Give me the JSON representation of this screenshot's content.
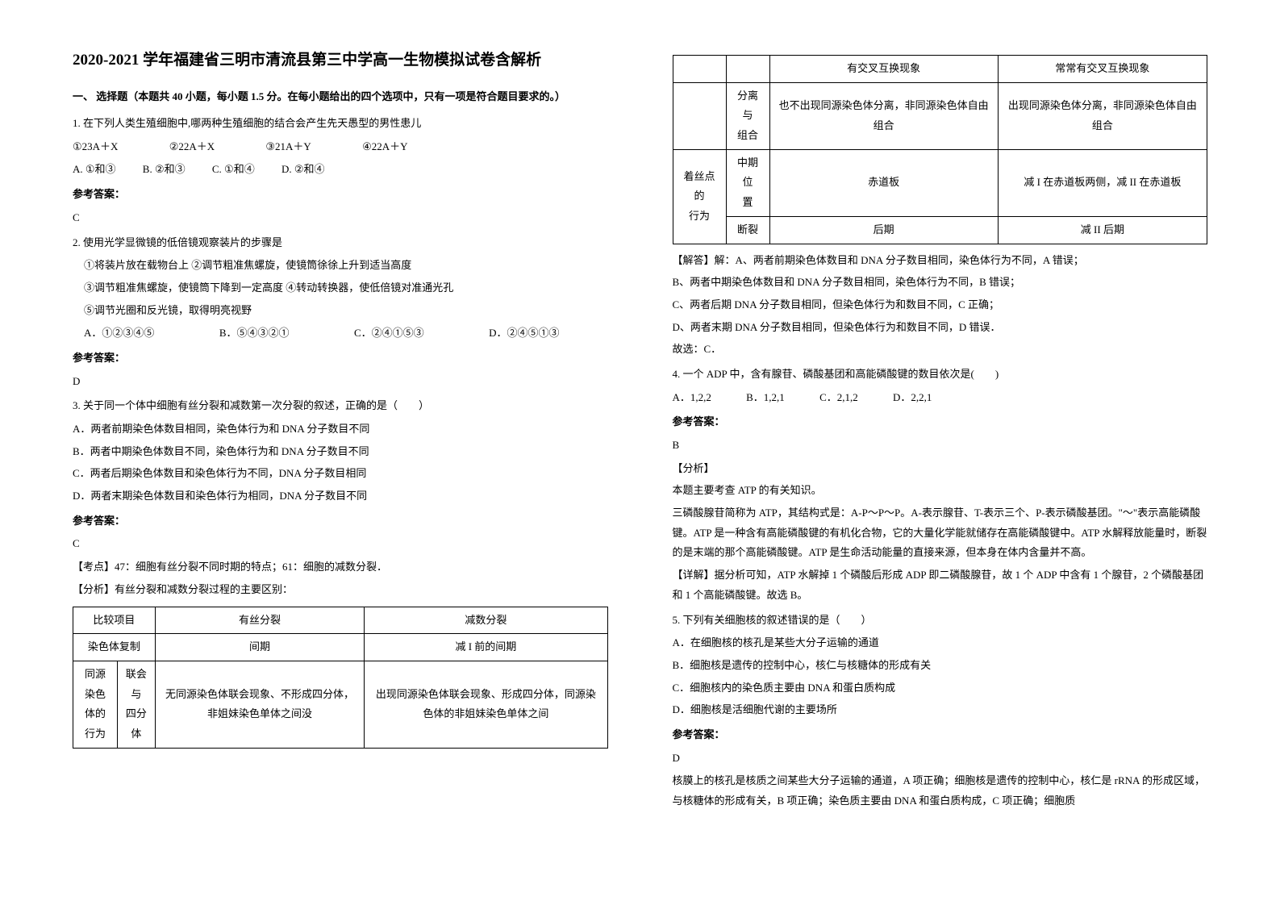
{
  "title": "2020-2021 学年福建省三明市清流县第三中学高一生物模拟试卷含解析",
  "section1": "一、 选择题（本题共 40 小题，每小题 1.5 分。在每小题给出的四个选项中，只有一项是符合题目要求的。）",
  "q1": {
    "stem": "1. 在下列人类生殖细胞中,哪两种生殖细胞的结合会产生先天愚型的男性患儿",
    "nums": [
      "①23A＋X",
      "②22A＋X",
      "③21A＋Y",
      "④22A＋Y"
    ],
    "opts": [
      "A. ①和③",
      "B. ②和③",
      "C. ①和④",
      "D. ②和④"
    ],
    "ansLabel": "参考答案：",
    "ans": "C"
  },
  "q2": {
    "stem": "2. 使用光学显微镜的低倍镜观察装片的步骤是",
    "s1": "①将装片放在载物台上          ②调节粗准焦螺旋，使镜筒徐徐上升到适当高度",
    "s2": "③调节粗准焦螺旋，使镜筒下降到一定高度   ④转动转换器，使低倍镜对准通光孔",
    "s3": "⑤调节光圈和反光镜，取得明亮视野",
    "opts": [
      "A．①②③④⑤",
      "B．⑤④③②①",
      "C．②④①⑤③",
      "D．②④⑤①③"
    ],
    "ansLabel": "参考答案：",
    "ans": "D"
  },
  "q3": {
    "stem": "3. 关于同一个体中细胞有丝分裂和减数第一次分裂的叙述，正确的是（　　）",
    "oA": "A．两者前期染色体数目相同，染色体行为和 DNA 分子数目不同",
    "oB": "B．两者中期染色体数目不同，染色体行为和 DNA 分子数目不同",
    "oC": "C．两者后期染色体数目和染色体行为不同，DNA 分子数目相同",
    "oD": "D．两者末期染色体数目和染色体行为相同，DNA 分子数目不同",
    "ansLabel": "参考答案：",
    "ans": "C",
    "kd": "【考点】47：细胞有丝分裂不同时期的特点；61：细胞的减数分裂．",
    "fx": "【分析】有丝分裂和减数分裂过程的主要区别："
  },
  "table_left": {
    "h1": "比较项目",
    "h2": "有丝分裂",
    "h3": "减数分裂",
    "r1c1": "染色体复制",
    "r1c2": "间期",
    "r1c3": "减 I 前的间期",
    "r2c1a": "同源染色",
    "r2c1b": "联会与",
    "r2c2": "无同源染色体联会现象、不形成四分体，非姐妹染色单体之间没",
    "r2c3": "出现同源染色体联会现象、形成四分体，同源染色体的非姐妹染色单体之间",
    "r3c1a": "体的行为",
    "r3c1b": "四分体"
  },
  "table_right": {
    "r0c3": "有交叉互换现象",
    "r0c4": "常常有交叉互换现象",
    "r1c2a": "分离与",
    "r1c2b": "组合",
    "r1c3": "也不出现同源染色体分离，非同源染色体自由组合",
    "r1c4": "出现同源染色体分离，非同源染色体自由组合",
    "r2c1a": "着丝点的",
    "r2c1b": "行为",
    "r2c2a": "中期位",
    "r2c2b": "置",
    "r2c3": "赤道板",
    "r2c4": "减 I 在赤道板两侧，减 II 在赤道板",
    "r3c2": "断裂",
    "r3c3": "后期",
    "r3c4": "减 II 后期"
  },
  "q3exp": {
    "jd": "【解答】解：A、两者前期染色体数目和 DNA 分子数目相同，染色体行为不同，A 错误；",
    "b": "B、两者中期染色体数目和 DNA 分子数目相同，染色体行为不同，B 错误；",
    "c": "C、两者后期 DNA 分子数目相同，但染色体行为和数目不同，C 正确；",
    "d": "D、两者末期 DNA 分子数目相同，但染色体行为和数目不同，D 错误．",
    "gx": "故选：C．"
  },
  "q4": {
    "stem": "4. 一个 ADP 中，含有腺苷、磷酸基团和高能磷酸键的数目依次是(　　)",
    "opts": [
      "A．1,2,2",
      "B．1,2,1",
      "C．2,1,2",
      "D．2,2,1"
    ],
    "ansLabel": "参考答案：",
    "ans": "B",
    "fx": "【分析】",
    "p1": "本题主要考查 ATP 的有关知识。",
    "p2": "三磷酸腺苷简称为 ATP，其结构式是：A-P～P～P。A-表示腺苷、T-表示三个、P-表示磷酸基团。\"～\"表示高能磷酸键。ATP 是一种含有高能磷酸键的有机化合物，它的大量化学能就储存在高能磷酸键中。ATP 水解释放能量时，断裂的是末端的那个高能磷酸键。ATP 是生命活动能量的直接来源，但本身在体内含量并不高。",
    "xs": "【详解】据分析可知，ATP 水解掉 1 个磷酸后形成 ADP 即二磷酸腺苷，故 1 个 ADP 中含有 1 个腺苷，2 个磷酸基团和 1 个高能磷酸键。故选 B。"
  },
  "q5": {
    "stem": "5. 下列有关细胞核的叙述错误的是（　　）",
    "oA": "A．在细胞核的核孔是某些大分子运输的通道",
    "oB": "B．细胞核是遗传的控制中心，核仁与核糖体的形成有关",
    "oC": "C．细胞核内的染色质主要由 DNA 和蛋白质构成",
    "oD": "D．细胞核是活细胞代谢的主要场所",
    "ansLabel": "参考答案：",
    "ans": "D",
    "exp": "核膜上的核孔是核质之间某些大分子运输的通道，A 项正确；细胞核是遗传的控制中心，核仁是 rRNA 的形成区域，与核糖体的形成有关，B 项正确；染色质主要由 DNA 和蛋白质构成，C 项正确；细胞质"
  }
}
